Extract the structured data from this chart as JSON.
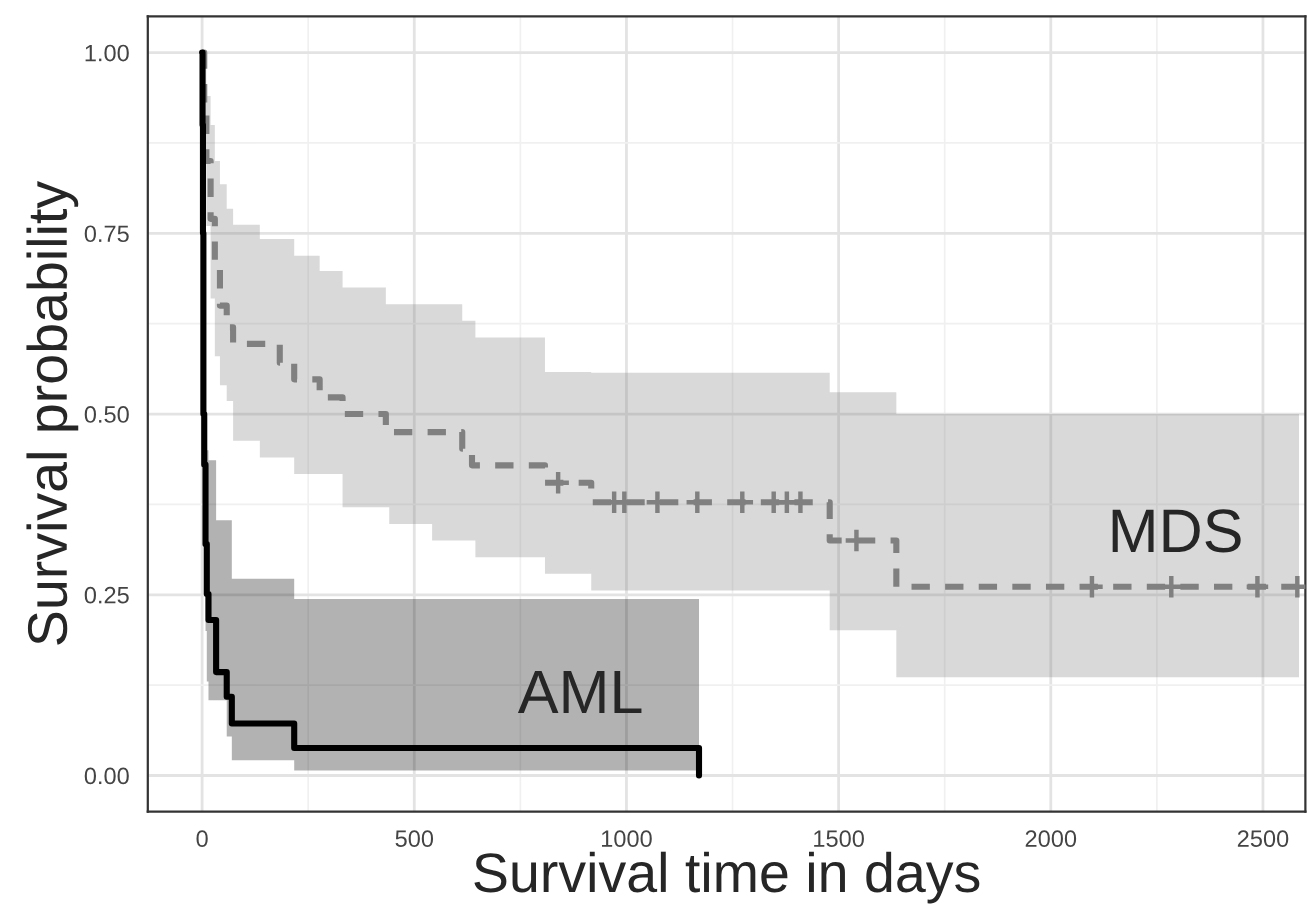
{
  "chart_data": {
    "type": "step",
    "xlabel": "Survival time in days",
    "ylabel": "Survival probability",
    "xlim": [
      -128,
      2600
    ],
    "ylim": [
      -0.05,
      1.05
    ],
    "xticks": [
      0,
      500,
      1000,
      1500,
      2000,
      2500
    ],
    "yticks": [
      {
        "value": 0,
        "label": "0.00"
      },
      {
        "value": 0.25,
        "label": "0.25"
      },
      {
        "value": 0.5,
        "label": "0.50"
      },
      {
        "value": 0.75,
        "label": "0.75"
      },
      {
        "value": 1,
        "label": "1.00"
      }
    ],
    "grid": true,
    "series": [
      {
        "name": "MDS",
        "color": "#808080",
        "line_style": "dashed",
        "x": [
          0,
          5,
          10,
          20,
          30,
          42,
          58,
          73,
          136,
          183,
          217,
          277,
          331,
          433,
          441,
          542,
          613,
          636,
          644,
          808,
          917,
          1479,
          1636,
          2585
        ],
        "values": [
          1.0,
          0.93,
          0.85,
          0.77,
          0.7,
          0.65,
          0.62,
          0.597,
          0.597,
          0.571,
          0.548,
          0.523,
          0.5,
          0.475,
          0.475,
          0.475,
          0.452,
          0.429,
          0.429,
          0.405,
          0.378,
          0.325,
          0.261,
          0.261
        ],
        "upper": [
          1.0,
          0.99,
          0.94,
          0.9,
          0.85,
          0.818,
          0.784,
          0.762,
          0.742,
          0.742,
          0.719,
          0.698,
          0.675,
          0.652,
          0.652,
          0.652,
          0.629,
          0.629,
          0.606,
          0.558,
          0.557,
          0.53,
          0.5,
          0.5
        ],
        "lower": [
          1.0,
          0.86,
          0.76,
          0.66,
          0.58,
          0.54,
          0.518,
          0.463,
          0.44,
          0.44,
          0.417,
          0.417,
          0.371,
          0.371,
          0.348,
          0.325,
          0.325,
          0.325,
          0.302,
          0.279,
          0.256,
          0.201,
          0.136,
          0.136
        ]
      },
      {
        "type": "scatter",
        "color": "#808080",
        "marker": "cross",
        "x": [
          839,
          971,
          995,
          1073,
          1167,
          1273,
          1347,
          1378,
          1410,
          1542,
          2097,
          2284,
          2487,
          2581
        ],
        "values": [
          0.405,
          0.378,
          0.378,
          0.378,
          0.378,
          0.378,
          0.378,
          0.378,
          0.378,
          0.325,
          0.261,
          0.261,
          0.261,
          0.261
        ]
      },
      {
        "name": "AML",
        "color": "#000000",
        "line_style": "solid",
        "x": [
          0,
          1,
          2,
          3,
          5,
          8,
          11,
          15,
          33,
          58,
          70,
          217,
          1171
        ],
        "values": [
          1.0,
          0.9,
          0.75,
          0.5,
          0.43,
          0.32,
          0.251,
          0.215,
          0.143,
          0.109,
          0.072,
          0.038,
          0.0
        ],
        "upper": [
          1.0,
          1.0,
          0.9,
          0.7,
          0.6,
          0.5,
          0.45,
          0.436,
          0.353,
          0.353,
          0.272,
          0.244,
          0.244
        ],
        "lower": [
          1.0,
          0.8,
          0.6,
          0.35,
          0.3,
          0.2,
          0.13,
          0.104,
          0.104,
          0.054,
          0.021,
          0.007,
          0.007
        ]
      }
    ]
  }
}
